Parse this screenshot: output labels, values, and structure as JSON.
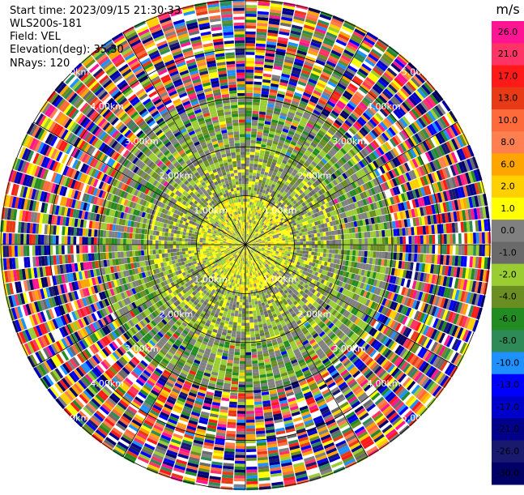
{
  "header": {
    "start_time": "Start time: 2023/09/15 21:30:33",
    "site": "WLS200s-181",
    "field": "Field: VEL",
    "elevation": "Elevation(deg): 35.30",
    "nrays": "NRays: 120"
  },
  "colorbar": {
    "unit": "m/s",
    "ticks": [
      "26.0",
      "21.0",
      "17.0",
      "13.0",
      "10.0",
      "8.0",
      "6.0",
      "2.0",
      "1.0",
      "0.0",
      "-1.0",
      "-2.0",
      "-4.0",
      "-6.0",
      "-8.0",
      "-10.0",
      "-13.0",
      "-17.0",
      "-21.0",
      "-26.0",
      "-30.0"
    ],
    "colors": [
      "#ff1493",
      "#ff3366",
      "#ff1a1a",
      "#e83a14",
      "#ff6a3a",
      "#ff7f50",
      "#ffa500",
      "#ffd000",
      "#ffff00",
      "#808080",
      "#6a6a6a",
      "#9acd32",
      "#6b8e23",
      "#228b22",
      "#2e8b57",
      "#1e90ff",
      "#0000ff",
      "#0000cd",
      "#00008b",
      "#191970",
      "#000066"
    ]
  },
  "chart_data": {
    "type": "ppi",
    "title": "",
    "field": "VEL",
    "units": "m/s",
    "elevation_deg": 35.3,
    "n_rays": 120,
    "range_ring_labels": [
      "1.00km",
      "2.00km",
      "3.00km",
      "4.00km",
      "5.00km"
    ],
    "range_rings_km": [
      1,
      2,
      3,
      4,
      5
    ],
    "max_range_km": 5.0,
    "color_scale_bounds": [
      26.0,
      21.0,
      17.0,
      13.0,
      10.0,
      8.0,
      6.0,
      2.0,
      1.0,
      0.0,
      -1.0,
      -2.0,
      -4.0,
      -6.0,
      -8.0,
      -10.0,
      -13.0,
      -17.0,
      -21.0,
      -26.0,
      -30.0
    ],
    "radial_structure": [
      {
        "range_km": [
          0,
          1
        ],
        "dominant": "0.0 to 2.0 m/s (yellow / gray)"
      },
      {
        "range_km": [
          1,
          2
        ],
        "dominant": "-2.0 to 0.0 m/s (green / gray) with yellow patches"
      },
      {
        "range_km": [
          2,
          3
        ],
        "dominant": "-2.0 to 1.0 m/s (green / gray)"
      },
      {
        "range_km": [
          3,
          5
        ],
        "dominant": "full range, noisy (-30.0 to 26.0 m/s)"
      }
    ],
    "legend": "colorbar-right",
    "grid": true
  }
}
